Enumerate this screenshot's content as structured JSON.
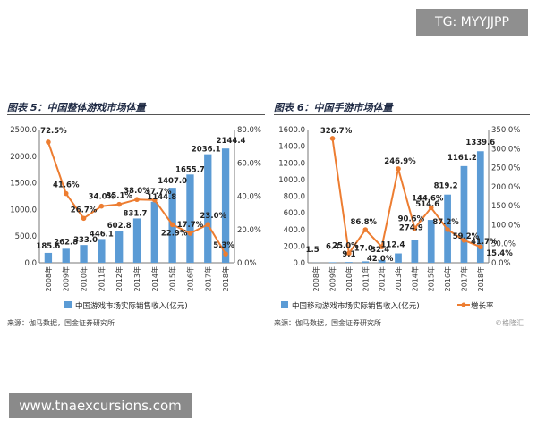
{
  "watermarks": {
    "top": "TG: MYYJJPP",
    "bottom": "www.tnaexcursions.com"
  },
  "panels": [
    {
      "title": "图表 5：中国整体游戏市场体量",
      "source": "来源：伽马数据，国金证券研究所",
      "badge": ""
    },
    {
      "title": "图表 6：中国手游市场体量",
      "source": "来源：伽马数据，国金证券研究所",
      "badge": "©格隆汇"
    }
  ],
  "colors": {
    "bar": "#5b9bd5",
    "line": "#ed7d31",
    "axis": "#777777",
    "grid": "#e6e6e6"
  },
  "chart_data": [
    {
      "type": "bar",
      "categories": [
        "2008年",
        "2009年",
        "2010年",
        "2011年",
        "2012年",
        "2013年",
        "2014年",
        "2015年",
        "2016年",
        "2017年",
        "2018年"
      ],
      "series": [
        {
          "name": "中国游戏市场实际销售收入(亿元)",
          "kind": "bar",
          "axis": "left",
          "values": [
            185.6,
            262.8,
            333.0,
            446.1,
            602.8,
            831.7,
            1144.8,
            1407.0,
            1655.7,
            2036.1,
            2144.4
          ],
          "labels": [
            "185.6",
            "262.8",
            "333.0",
            "446.1",
            "602.8",
            "831.7",
            "1144.8",
            "1407.0",
            "1655.7",
            "2036.1",
            "2144.4"
          ]
        },
        {
          "name": "",
          "kind": "line",
          "axis": "right",
          "values": [
            72.5,
            41.6,
            26.7,
            34.0,
            35.1,
            38.0,
            37.7,
            22.9,
            17.7,
            23.0,
            5.3
          ],
          "labels": [
            "72.5%",
            "41.6%",
            "26.7%",
            "34.0%",
            "35.1%",
            "38.0%",
            "37.7%",
            "22.9%",
            "17.7%",
            "23.0%",
            "5.3%"
          ]
        }
      ],
      "ylim_left": [
        0,
        2500
      ],
      "yticks_left": [
        0,
        500,
        1000,
        1500,
        2000,
        2500
      ],
      "ytick_labels_left": [
        "0.0",
        "500.0",
        "1000.0",
        "1500.0",
        "2000.0",
        "2500.0"
      ],
      "ylim_right": [
        0,
        80
      ],
      "yticks_right": [
        0,
        20,
        40,
        60,
        80
      ],
      "ytick_labels_right": [
        "0.0%",
        "20.0%",
        "40.0%",
        "60.0%",
        "80.0%"
      ],
      "legend": [
        "中国游戏市场实际销售收入(亿元)"
      ],
      "legend_position": "bottom"
    },
    {
      "type": "bar",
      "categories": [
        "2008年",
        "2009年",
        "2010年",
        "2011年",
        "2012年",
        "2013年",
        "2014年",
        "2015年",
        "2016年",
        "2017年",
        "2018年"
      ],
      "series": [
        {
          "name": "中国移动游戏市场实际销售收入(亿元)",
          "kind": "bar",
          "axis": "left",
          "values": [
            1.5,
            6.4,
            9.1,
            17.0,
            32.4,
            112.4,
            274.9,
            514.6,
            819.2,
            1161.2,
            1339.6
          ],
          "labels": [
            "1.5",
            "6.4",
            "9.1",
            "17.0",
            "32.4",
            "112.4",
            "274.9",
            "514.6",
            "819.2",
            "1161.2",
            "1339.6"
          ]
        },
        {
          "name": "增长率",
          "kind": "line",
          "axis": "right",
          "values": [
            null,
            326.7,
            25.0,
            86.8,
            42.0,
            246.9,
            90.6,
            144.6,
            87.2,
            59.2,
            41.7
          ],
          "labels": [
            "",
            "326.7%",
            "25.0%",
            "86.8%",
            "42.0%",
            "246.9%",
            "90.6%",
            "144.6%",
            "87.2%",
            "59.2%",
            "41.7%"
          ]
        }
      ],
      "extra_labels": [
        "15.4%"
      ],
      "ylim_left": [
        0,
        1600
      ],
      "yticks_left": [
        0,
        200,
        400,
        600,
        800,
        1000,
        1200,
        1400,
        1600
      ],
      "ytick_labels_left": [
        "0.0",
        "200.0",
        "400.0",
        "600.0",
        "800.0",
        "1000.0",
        "1200.0",
        "1400.0",
        "1600.0"
      ],
      "ylim_right": [
        0,
        350
      ],
      "yticks_right": [
        0,
        50,
        100,
        150,
        200,
        250,
        300,
        350
      ],
      "ytick_labels_right": [
        "0.0%",
        "50.0%",
        "100.0%",
        "150.0%",
        "200.0%",
        "250.0%",
        "300.0%",
        "350.0%"
      ],
      "legend": [
        "中国移动游戏市场实际销售收入(亿元)",
        "增长率"
      ],
      "legend_position": "bottom"
    }
  ]
}
